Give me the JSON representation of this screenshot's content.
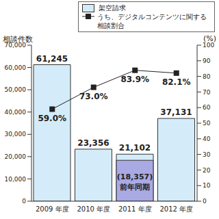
{
  "chart_data": {
    "type": "bar",
    "y_label": "相談件数",
    "y2_label": "(%)",
    "categories": [
      "2009 年度",
      "2010 年度",
      "2011 年度",
      "2012 年度"
    ],
    "series": [
      {
        "name": "架空請求",
        "type": "bar",
        "color": "#d4ecf9",
        "values": [
          61245,
          23356,
          21102,
          37131
        ],
        "value_labels": [
          "61,245",
          "23,356",
          "21,102",
          "37,131"
        ]
      },
      {
        "name": "うち、デジタルコンテンツに関する相談割合",
        "type": "line",
        "axis": "y2",
        "color": "#222222",
        "marker": "square",
        "values": [
          59.0,
          73.0,
          83.9,
          82.1
        ],
        "value_labels": [
          "59.0%",
          "73.0%",
          "83.9%",
          "82.1%"
        ]
      }
    ],
    "annotations": [
      {
        "category": "2011 年度",
        "value": 18357,
        "value_label": "(18,357)",
        "text": "前年同期",
        "color": "#a9a9e4"
      }
    ],
    "ylim": [
      0,
      70000
    ],
    "yticks": [
      0,
      {
        "value": 10000,
        "label": "10,000"
      },
      {
        "value": 20000,
        "label": "20,000"
      },
      {
        "value": 30000,
        "label": "30,000"
      },
      {
        "value": 40000,
        "label": "40,000"
      },
      {
        "value": 50000,
        "label": "50,000"
      },
      {
        "value": 60000,
        "label": "60,000"
      },
      {
        "value": 70000,
        "label": "70,000"
      }
    ],
    "y2lim": [
      0,
      100
    ],
    "y2ticks": [
      0,
      10,
      20,
      30,
      40,
      50,
      60,
      70,
      80,
      90,
      100
    ],
    "data_labels": true,
    "legend": "top right"
  }
}
